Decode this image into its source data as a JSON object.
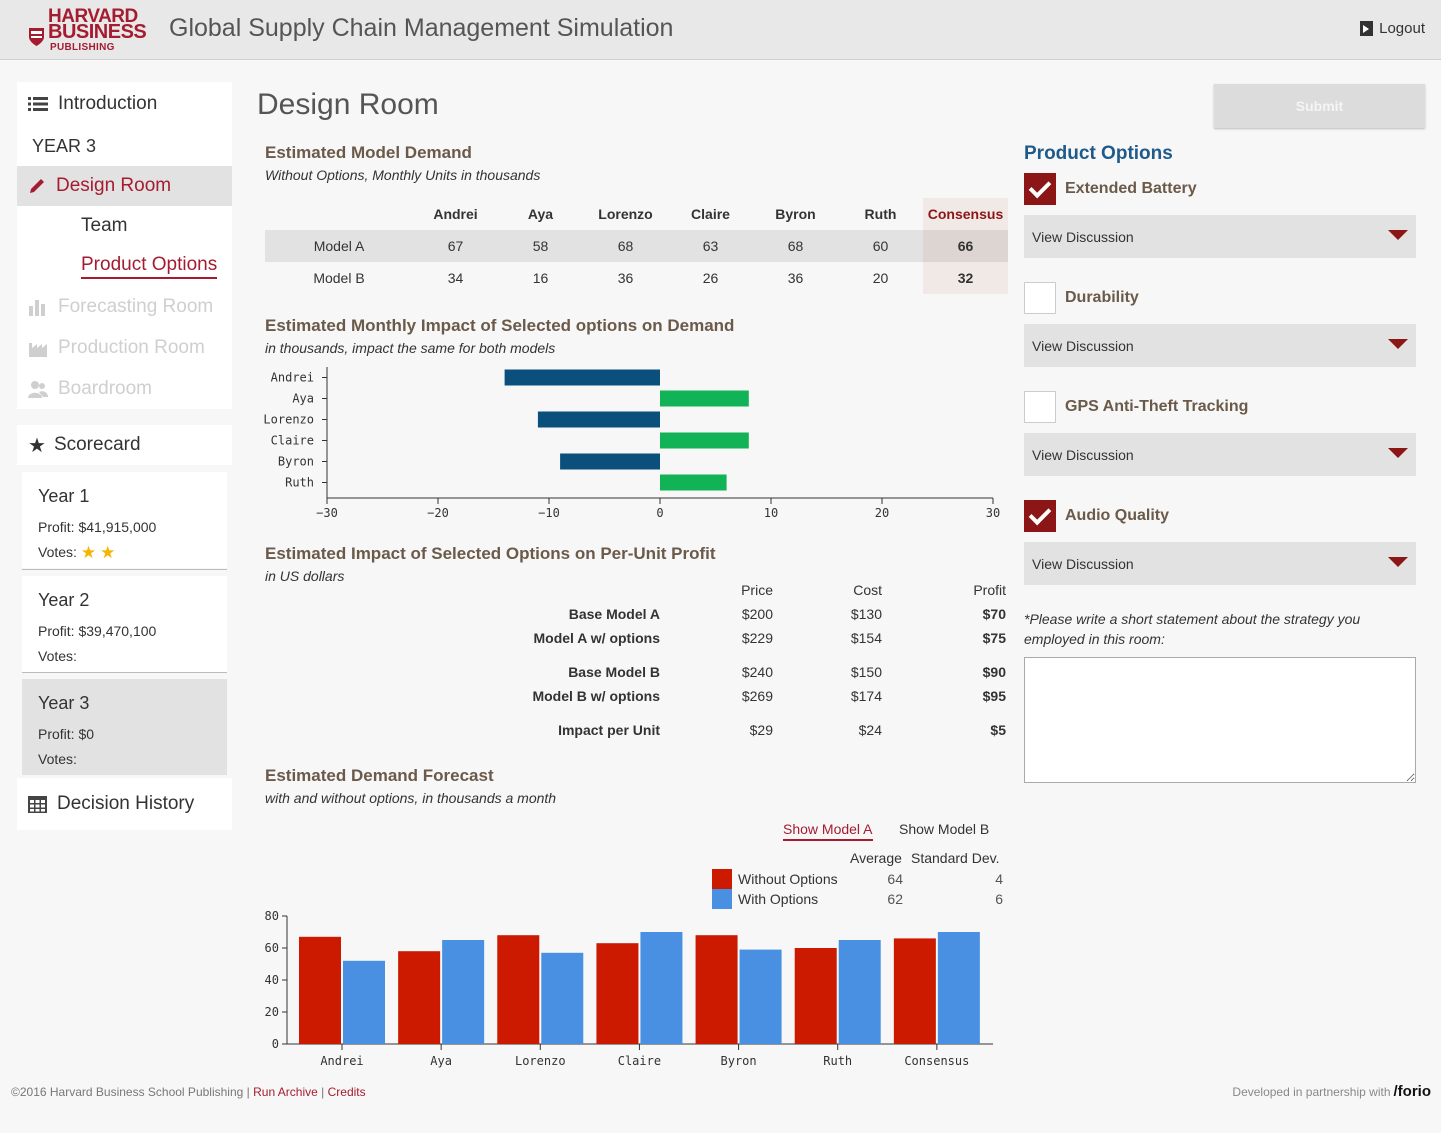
{
  "header": {
    "logo_line1": "HARVARD",
    "logo_line2": "BUSINESS",
    "logo_line3": "PUBLISHING",
    "title": "Global Supply Chain Management Simulation",
    "logout_label": "Logout"
  },
  "sidebar": {
    "intro": "Introduction",
    "year": "YEAR 3",
    "design_room": "Design Room",
    "team": "Team",
    "product_options": "Product Options",
    "forecasting": "Forecasting Room",
    "production": "Production Room",
    "boardroom": "Boardroom",
    "scorecard": "Scorecard",
    "decision_history": "Decision History",
    "years": [
      {
        "title": "Year 1",
        "profit": "Profit: $41,915,000",
        "votes": "Votes:",
        "stars": 2
      },
      {
        "title": "Year 2",
        "profit": "Profit: $39,470,100",
        "votes": "Votes:",
        "stars": 0
      },
      {
        "title": "Year 3",
        "profit": "Profit: $0",
        "votes": "Votes:",
        "stars": 0
      }
    ]
  },
  "main": {
    "page_title": "Design Room",
    "submit_label": "Submit",
    "demand": {
      "title": "Estimated Model Demand",
      "subtitle": "Without Options, Monthly Units in thousands",
      "columns": [
        "",
        "Andrei",
        "Aya",
        "Lorenzo",
        "Claire",
        "Byron",
        "Ruth",
        "Consensus"
      ],
      "rows": [
        {
          "label": "Model A",
          "values": [
            "67",
            "58",
            "68",
            "63",
            "68",
            "60",
            "66"
          ]
        },
        {
          "label": "Model B",
          "values": [
            "34",
            "16",
            "36",
            "26",
            "36",
            "20",
            "32"
          ]
        }
      ]
    },
    "impact": {
      "title": "Estimated Monthly Impact of Selected options on Demand",
      "subtitle": "in thousands, impact the same for both models"
    },
    "profit": {
      "title": "Estimated Impact of Selected Options on Per-Unit Profit",
      "subtitle": "in US dollars",
      "headers": {
        "price": "Price",
        "cost": "Cost",
        "profit": "Profit"
      },
      "rows": [
        {
          "label": "Base Model A",
          "price": "$200",
          "cost": "$130",
          "profit": "$70"
        },
        {
          "label": "Model A w/ options",
          "price": "$229",
          "cost": "$154",
          "profit": "$75"
        },
        {
          "label": "Base Model B",
          "price": "$240",
          "cost": "$150",
          "profit": "$90"
        },
        {
          "label": "Model B w/ options",
          "price": "$269",
          "cost": "$174",
          "profit": "$95"
        },
        {
          "label": "Impact per Unit",
          "price": "$29",
          "cost": "$24",
          "profit": "$5"
        }
      ]
    },
    "forecast": {
      "title": "Estimated Demand Forecast",
      "subtitle": "with and without options, in thousands a month",
      "tab_a": "Show Model A",
      "tab_b": "Show Model B",
      "legend": {
        "average": "Average",
        "stddev": "Standard Dev.",
        "without": {
          "label": "Without Options",
          "avg": "64",
          "sd": "4"
        },
        "with": {
          "label": "With Options",
          "avg": "62",
          "sd": "6"
        }
      }
    }
  },
  "right": {
    "title": "Product Options",
    "view_discussion": "View Discussion",
    "options": [
      {
        "label": "Extended Battery",
        "checked": true
      },
      {
        "label": "Durability",
        "checked": false
      },
      {
        "label": "GPS Anti-Theft Tracking",
        "checked": false
      },
      {
        "label": "Audio Quality",
        "checked": true
      }
    ],
    "strategy_prompt": "*Please write a short statement about the strategy you employed in this room:",
    "strategy_value": ""
  },
  "footer": {
    "copyright": "©2016 Harvard Business School Publishing",
    "run_archive": "Run Archive",
    "credits": "Credits",
    "partner": "Developed in partnership with",
    "partner_brand": "/forio"
  },
  "colors": {
    "accent": "#a51c30",
    "negative_bar": "#0b4f7d",
    "positive_bar": "#12b256",
    "without_options": "#cc1a00",
    "with_options": "#4a90e2"
  },
  "chart_data": [
    {
      "type": "bar",
      "orientation": "horizontal",
      "title": "Estimated Monthly Impact of Selected options on Demand",
      "categories": [
        "Andrei",
        "Aya",
        "Lorenzo",
        "Claire",
        "Byron",
        "Ruth"
      ],
      "values": [
        -14,
        8,
        -11,
        8,
        -9,
        6
      ],
      "xlim": [
        -30,
        30
      ],
      "xticks": [
        -30,
        -20,
        -10,
        0,
        10,
        20,
        30
      ],
      "grid": false
    },
    {
      "type": "bar",
      "title": "Estimated Demand Forecast",
      "categories": [
        "Andrei",
        "Aya",
        "Lorenzo",
        "Claire",
        "Byron",
        "Ruth",
        "Consensus"
      ],
      "series": [
        {
          "name": "Without Options",
          "values": [
            67,
            58,
            68,
            63,
            68,
            60,
            66
          ]
        },
        {
          "name": "With Options",
          "values": [
            52,
            65,
            57,
            70,
            59,
            65,
            70
          ]
        }
      ],
      "ylim": [
        0,
        80
      ],
      "yticks": [
        0,
        20,
        40,
        60,
        80
      ],
      "grid": false
    }
  ]
}
